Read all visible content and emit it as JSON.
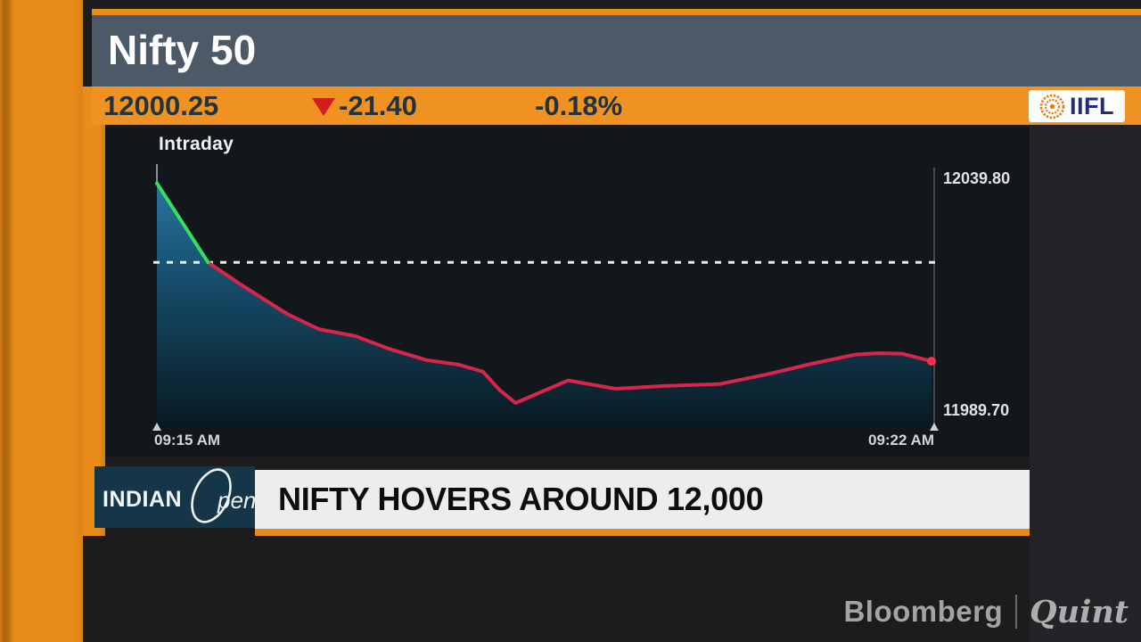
{
  "header": {
    "title": "Nifty 50",
    "bg_color": "#4c5a68",
    "accent_color": "#ea8c1c"
  },
  "ticker": {
    "price": "12000.25",
    "direction": "down",
    "change": "-21.40",
    "change_pct": "-0.18%",
    "bg_color": "#f09222",
    "text_color": "#22333e",
    "arrow_color": "#d21e1e",
    "brand_logo_text": "IIFL"
  },
  "chart_data": {
    "type": "line",
    "title": "Intraday",
    "x_tick_labels": [
      "09:15 AM",
      "09:22 AM"
    ],
    "y_tick_labels": [
      "12039.80",
      "11989.70"
    ],
    "y_axis": {
      "top_value": 12043.7,
      "bottom_value": 11985.8
    },
    "previous_close": 12021.65,
    "split_index": 1,
    "colors": {
      "up": "#35df5f",
      "down": "#d8254b",
      "dashed": "#ebebeb",
      "area_top": "#2e82b2",
      "area_mid": "#16506f",
      "area_bottom": "#081820",
      "end_dot": "#ff2c52",
      "axis": "#545a5e",
      "caret": "#cfcfcf"
    },
    "points": [
      {
        "t": 0.0,
        "v": 12038.8
      },
      {
        "t": 0.066,
        "v": 12021.65
      },
      {
        "t": 0.106,
        "v": 12017.1
      },
      {
        "t": 0.168,
        "v": 12010.5
      },
      {
        "t": 0.209,
        "v": 12007.2
      },
      {
        "t": 0.256,
        "v": 12005.7
      },
      {
        "t": 0.299,
        "v": 12003.0
      },
      {
        "t": 0.348,
        "v": 12000.5
      },
      {
        "t": 0.39,
        "v": 11999.5
      },
      {
        "t": 0.421,
        "v": 11998.0
      },
      {
        "t": 0.442,
        "v": 11994.1
      },
      {
        "t": 0.463,
        "v": 11991.2
      },
      {
        "t": 0.531,
        "v": 11996.1
      },
      {
        "t": 0.592,
        "v": 11994.3
      },
      {
        "t": 0.657,
        "v": 11994.9
      },
      {
        "t": 0.726,
        "v": 11995.3
      },
      {
        "t": 0.787,
        "v": 11997.4
      },
      {
        "t": 0.845,
        "v": 11999.7
      },
      {
        "t": 0.902,
        "v": 12001.7
      },
      {
        "t": 0.931,
        "v": 12002.0
      },
      {
        "t": 0.962,
        "v": 12001.9
      },
      {
        "t": 1.0,
        "v": 12000.25
      }
    ]
  },
  "program": {
    "name_part1": "INDIAN",
    "name_part2": "pen",
    "bg_color": "#143648"
  },
  "headline": {
    "text": "NIFTY HOVERS AROUND 12,000",
    "accent_color": "#e8891c"
  },
  "footer_brand": {
    "left": "Bloomberg",
    "right": "Quint"
  }
}
